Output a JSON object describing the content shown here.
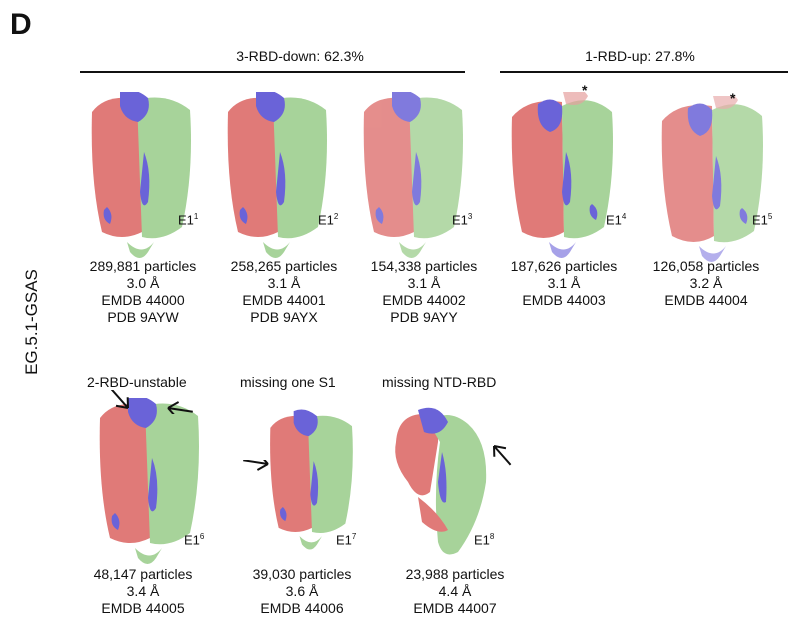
{
  "panel": {
    "letter": "D",
    "sample_label": "EG.5.1-GSAS"
  },
  "groups": [
    {
      "title": "3-RBD-down: 62.3%"
    },
    {
      "title": "1-RBD-up: 27.8%"
    }
  ],
  "colors": {
    "chain_a": "#e07a78",
    "chain_b": "#a7d39a",
    "chain_c": "#6a63d8"
  },
  "maps": [
    {
      "id": "E1",
      "sup": "1",
      "particles": "289,881 particles",
      "resolution": "3.0 Å",
      "emdb": "EMDB 44000",
      "pdb": "PDB 9AYW"
    },
    {
      "id": "E1",
      "sup": "2",
      "particles": "258,265 particles",
      "resolution": "3.1 Å",
      "emdb": "EMDB 44001",
      "pdb": "PDB 9AYX"
    },
    {
      "id": "E1",
      "sup": "3",
      "particles": "154,338 particles",
      "resolution": "3.1 Å",
      "emdb": "EMDB 44002",
      "pdb": "PDB 9AYY"
    },
    {
      "id": "E1",
      "sup": "4",
      "particles": "187,626 particles",
      "resolution": "3.1 Å",
      "emdb": "EMDB 44003",
      "pdb": ""
    },
    {
      "id": "E1",
      "sup": "5",
      "particles": "126,058 particles",
      "resolution": "3.2 Å",
      "emdb": "EMDB 44004",
      "pdb": ""
    },
    {
      "id": "E1",
      "sup": "6",
      "title": "2-RBD-unstable",
      "particles": "48,147 particles",
      "resolution": "3.4 Å",
      "emdb": "EMDB 44005"
    },
    {
      "id": "E1",
      "sup": "7",
      "title": "missing one S1",
      "particles": "39,030 particles",
      "resolution": "3.6 Å",
      "emdb": "EMDB 44006"
    },
    {
      "id": "E1",
      "sup": "8",
      "title": "missing NTD-RBD",
      "particles": "23,988 particles",
      "resolution": "4.4 Å",
      "emdb": "EMDB 44007"
    }
  ],
  "asterisk": "*"
}
